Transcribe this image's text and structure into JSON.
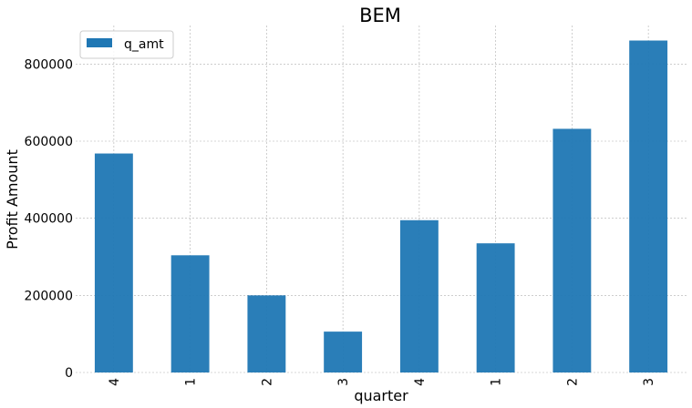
{
  "chart_data": {
    "type": "bar",
    "title": "BEM",
    "xlabel": "quarter",
    "ylabel": "Profit Amount",
    "categories": [
      "4",
      "1",
      "2",
      "3",
      "4",
      "1",
      "2",
      "3"
    ],
    "series": [
      {
        "name": "q_amt",
        "color": "#1f77b4",
        "values": [
          568000,
          304000,
          200000,
          106000,
          395000,
          335000,
          632000,
          861000
        ]
      }
    ],
    "ylim": [
      0,
      900000
    ],
    "yticks": [
      0,
      200000,
      400000,
      600000,
      800000
    ],
    "grid": true,
    "legend_position": "top-left"
  }
}
